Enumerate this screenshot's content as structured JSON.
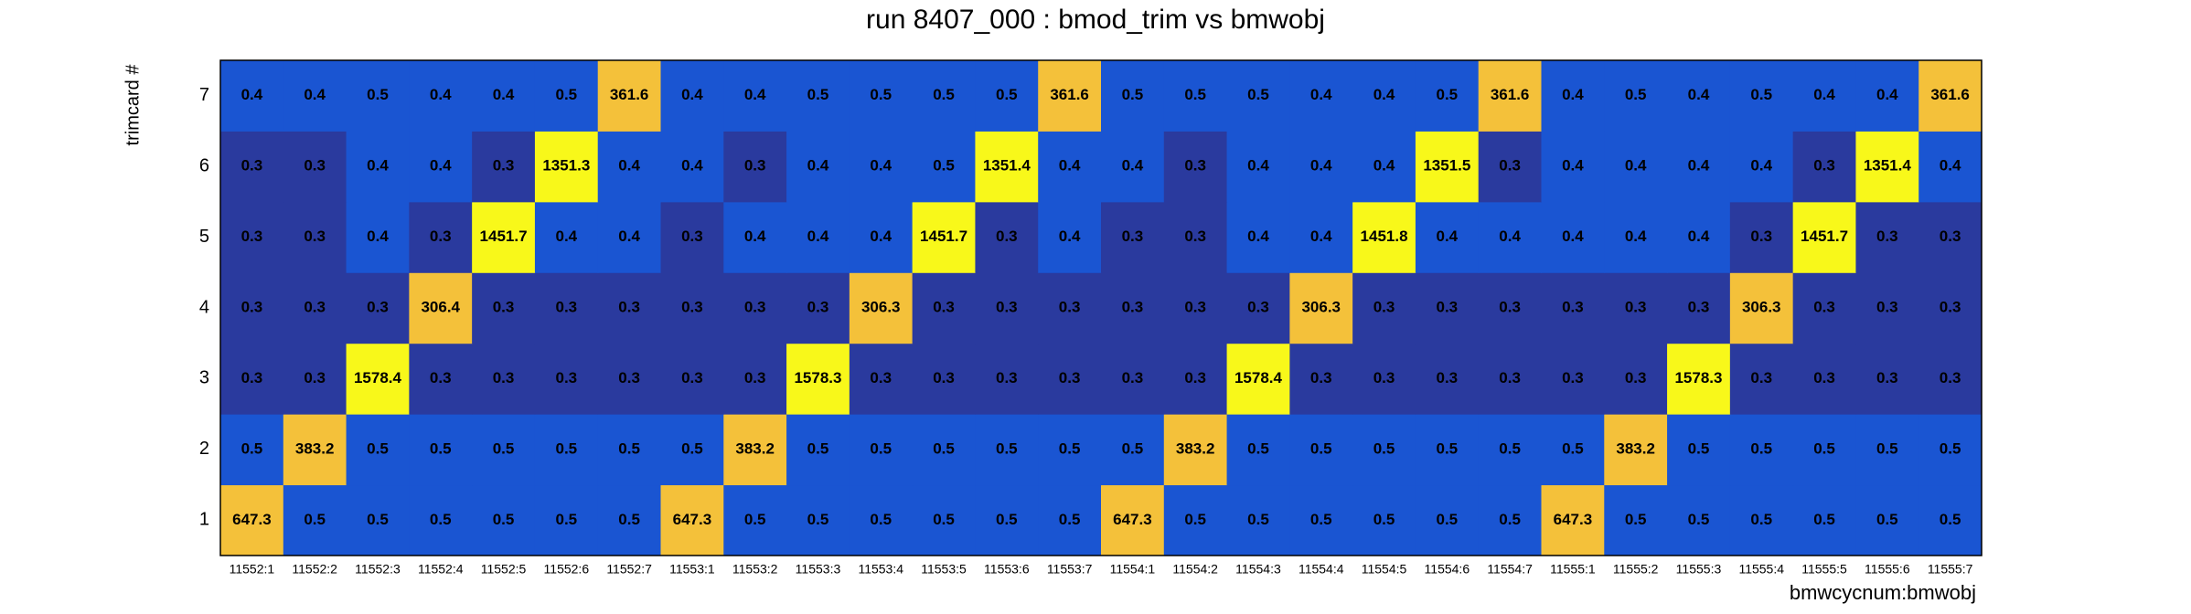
{
  "chart_data": {
    "type": "heatmap",
    "title": "run 8407_000 : bmod_trim vs bmwobj",
    "xlabel": "bmwcycnum:bmwobj",
    "ylabel": "trimcard #",
    "categories": [
      "11552:1",
      "11552:2",
      "11552:3",
      "11552:4",
      "11552:5",
      "11552:6",
      "11552:7",
      "11553:1",
      "11553:2",
      "11553:3",
      "11553:4",
      "11553:5",
      "11553:6",
      "11553:7",
      "11554:1",
      "11554:2",
      "11554:3",
      "11554:4",
      "11554:5",
      "11554:6",
      "11554:7",
      "11555:1",
      "11555:2",
      "11555:3",
      "11555:4",
      "11555:5",
      "11555:6",
      "11555:7"
    ],
    "y_categories": [
      "1",
      "2",
      "3",
      "4",
      "5",
      "6",
      "7"
    ],
    "colors": [
      "#2a3a9e",
      "#1a55d2",
      "#f4c13a",
      "#f8f81a"
    ],
    "z": [
      [
        647.3,
        0.5,
        0.5,
        0.5,
        0.5,
        0.5,
        0.5,
        647.3,
        0.5,
        0.5,
        0.5,
        0.5,
        0.5,
        0.5,
        647.3,
        0.5,
        0.5,
        0.5,
        0.5,
        0.5,
        0.5,
        647.3,
        0.5,
        0.5,
        0.5,
        0.5,
        0.5,
        0.5
      ],
      [
        0.5,
        383.2,
        0.5,
        0.5,
        0.5,
        0.5,
        0.5,
        0.5,
        383.2,
        0.5,
        0.5,
        0.5,
        0.5,
        0.5,
        0.5,
        383.2,
        0.5,
        0.5,
        0.5,
        0.5,
        0.5,
        0.5,
        383.2,
        0.5,
        0.5,
        0.5,
        0.5,
        0.5
      ],
      [
        0.3,
        0.3,
        1578.4,
        0.3,
        0.3,
        0.3,
        0.3,
        0.3,
        0.3,
        1578.3,
        0.3,
        0.3,
        0.3,
        0.3,
        0.3,
        0.3,
        1578.4,
        0.3,
        0.3,
        0.3,
        0.3,
        0.3,
        0.3,
        1578.3,
        0.3,
        0.3,
        0.3,
        0.3
      ],
      [
        0.3,
        0.3,
        0.3,
        306.4,
        0.3,
        0.3,
        0.3,
        0.3,
        0.3,
        0.3,
        306.3,
        0.3,
        0.3,
        0.3,
        0.3,
        0.3,
        0.3,
        306.3,
        0.3,
        0.3,
        0.3,
        0.3,
        0.3,
        0.3,
        306.3,
        0.3,
        0.3,
        0.3
      ],
      [
        0.3,
        0.3,
        0.4,
        0.3,
        1451.7,
        0.4,
        0.4,
        0.3,
        0.4,
        0.4,
        0.4,
        1451.7,
        0.3,
        0.4,
        0.3,
        0.3,
        0.4,
        0.4,
        1451.8,
        0.4,
        0.4,
        0.4,
        0.4,
        0.4,
        0.3,
        1451.7,
        0.3,
        0.3
      ],
      [
        0.3,
        0.3,
        0.4,
        0.4,
        0.3,
        1351.3,
        0.4,
        0.4,
        0.3,
        0.4,
        0.4,
        0.5,
        1351.4,
        0.4,
        0.4,
        0.3,
        0.4,
        0.4,
        0.4,
        1351.5,
        0.3,
        0.4,
        0.4,
        0.4,
        0.4,
        0.3,
        1351.4,
        0.4
      ],
      [
        0.4,
        0.4,
        0.5,
        0.4,
        0.4,
        0.5,
        361.6,
        0.4,
        0.4,
        0.5,
        0.5,
        0.5,
        0.5,
        361.6,
        0.5,
        0.5,
        0.5,
        0.4,
        0.4,
        0.5,
        361.6,
        0.4,
        0.5,
        0.4,
        0.5,
        0.4,
        0.4,
        361.6
      ]
    ]
  }
}
